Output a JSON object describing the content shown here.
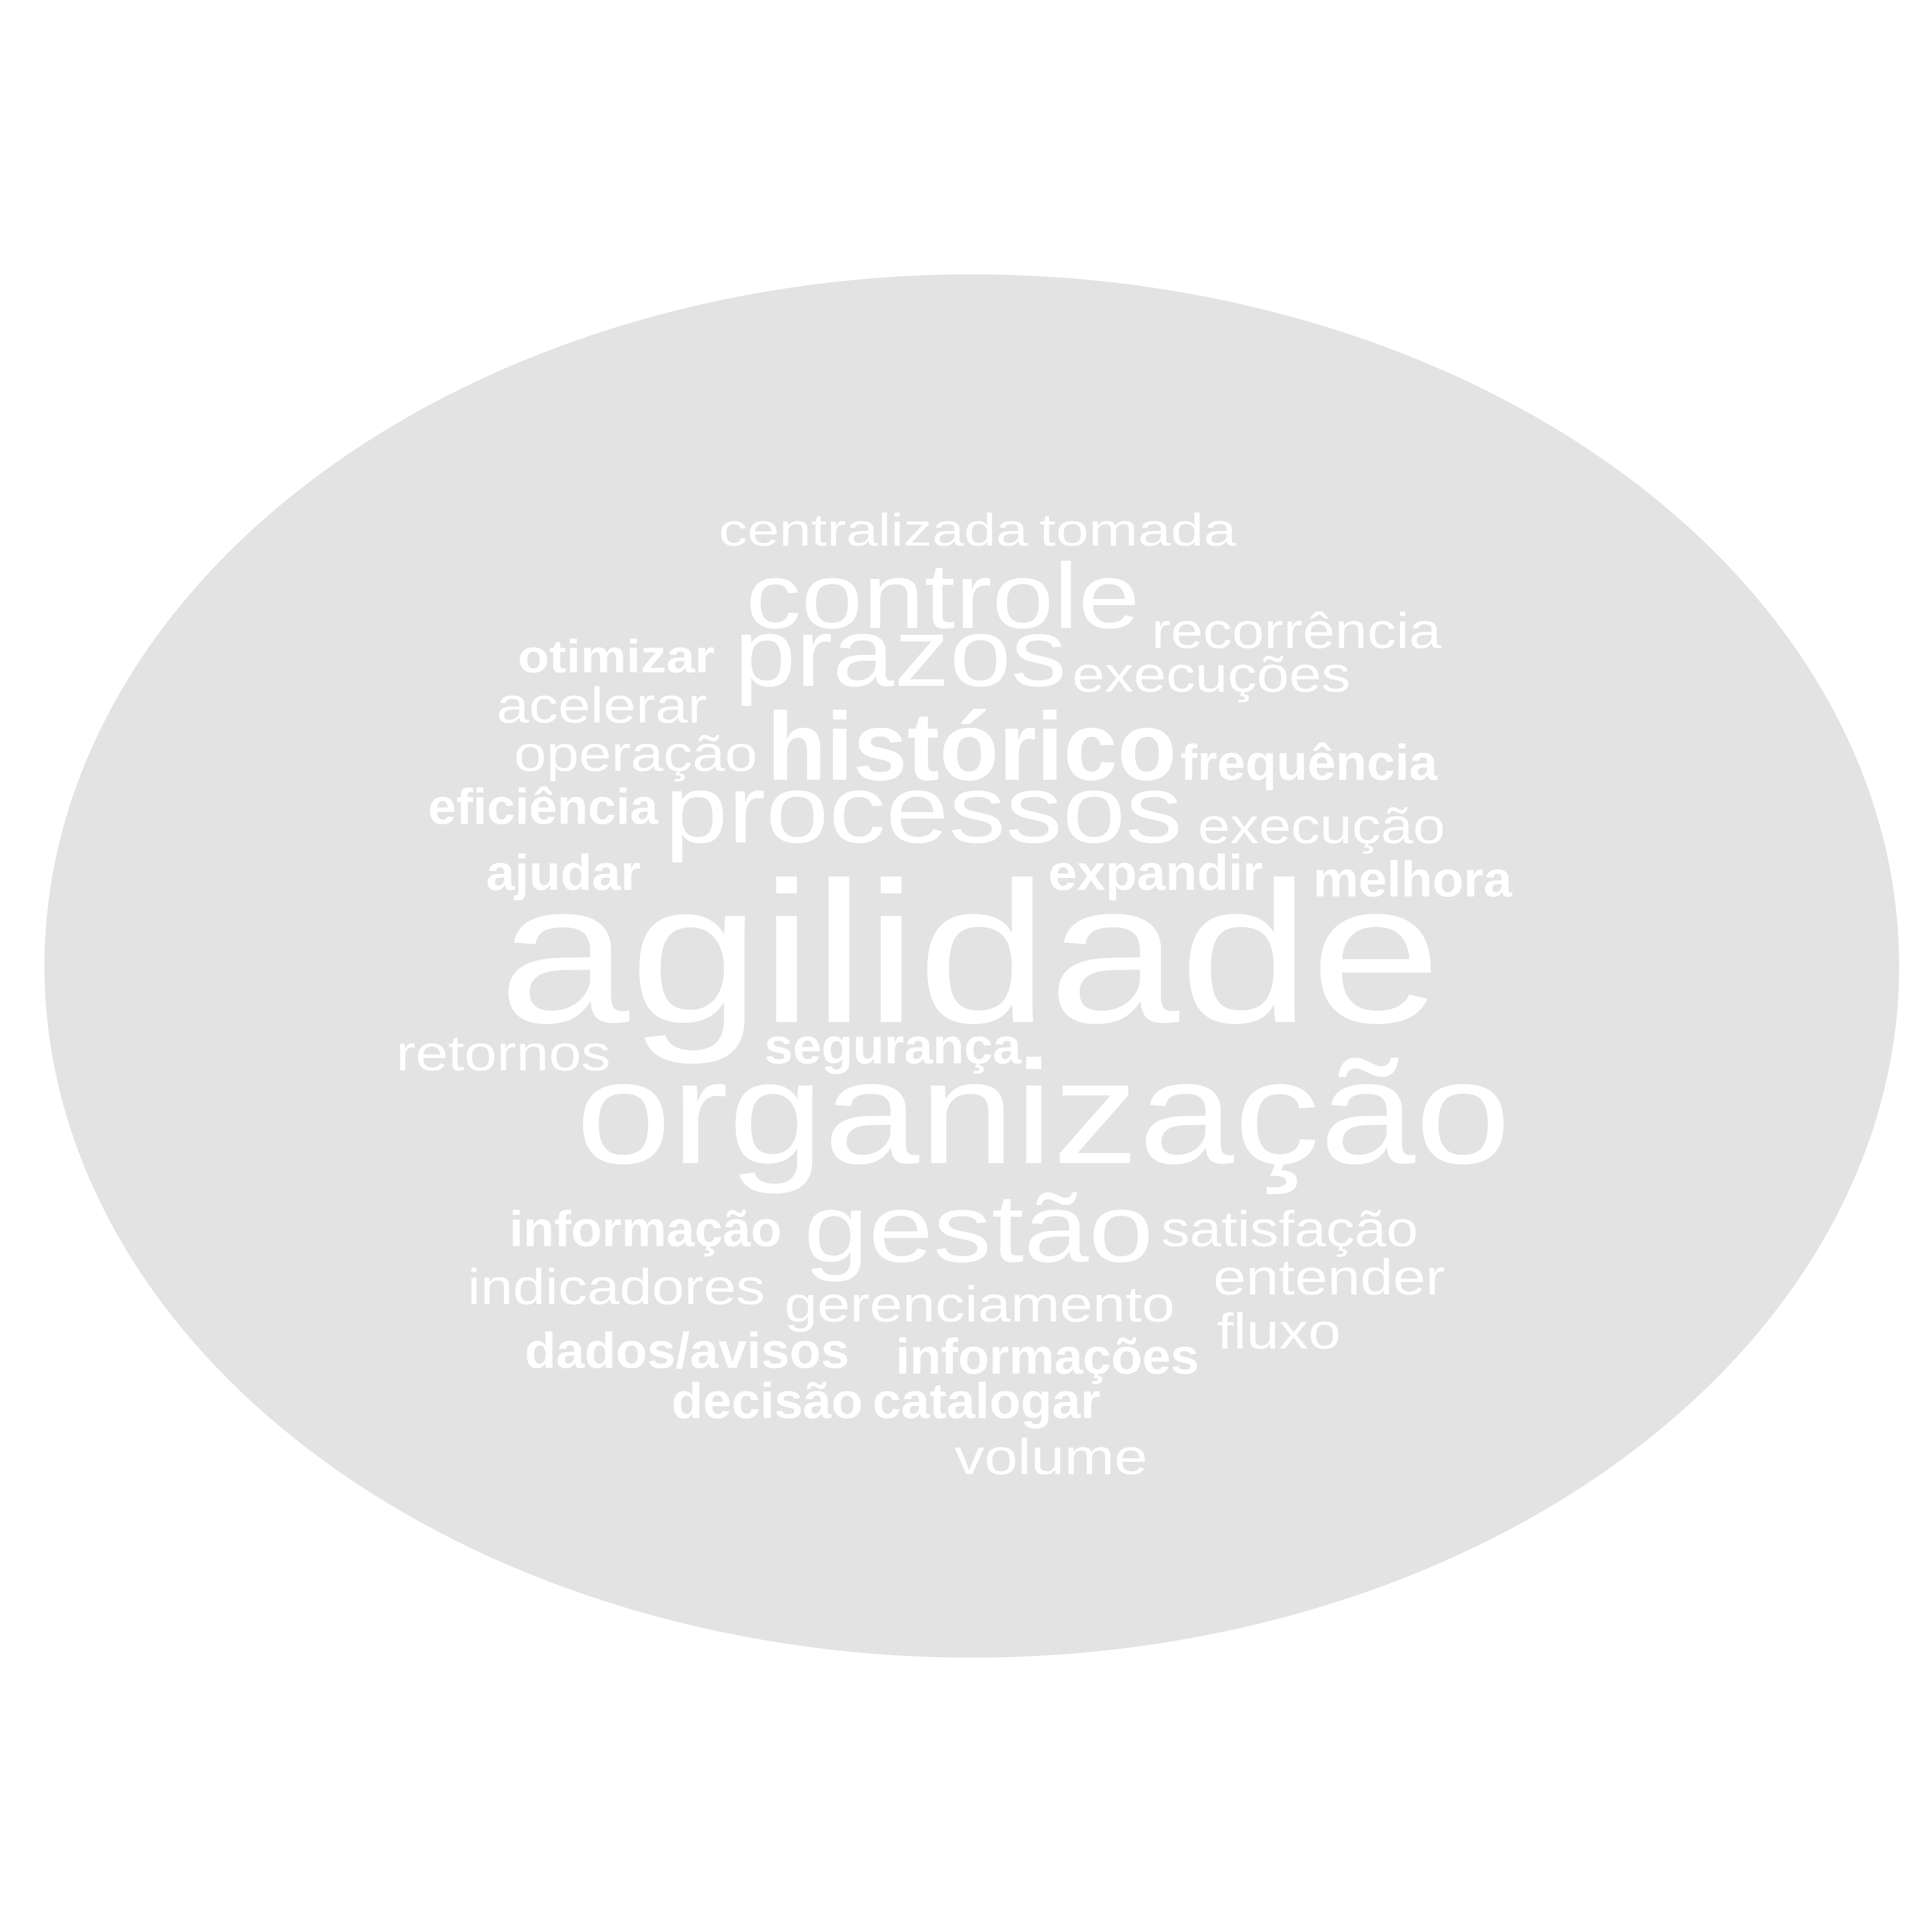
{
  "background_color": "#ffffff",
  "shape_color": "#e3e3e3",
  "word_color": "#ffffff",
  "words": [
    {
      "text": "centralizada"
    },
    {
      "text": "tomada"
    },
    {
      "text": "controle"
    },
    {
      "text": "recorrência"
    },
    {
      "text": "otimizar"
    },
    {
      "text": "prazos"
    },
    {
      "text": "execuções"
    },
    {
      "text": "acelerar"
    },
    {
      "text": "operação"
    },
    {
      "text": "histórico"
    },
    {
      "text": "frequência"
    },
    {
      "text": "eficiência"
    },
    {
      "text": "processos"
    },
    {
      "text": "execução"
    },
    {
      "text": "ajudar"
    },
    {
      "text": "expandir"
    },
    {
      "text": "melhora"
    },
    {
      "text": "agilidade"
    },
    {
      "text": "retornos"
    },
    {
      "text": "segurança"
    },
    {
      "text": "organização"
    },
    {
      "text": "informação"
    },
    {
      "text": "gestão"
    },
    {
      "text": "satisfação"
    },
    {
      "text": "indicadores"
    },
    {
      "text": "entender"
    },
    {
      "text": "gerenciamento"
    },
    {
      "text": "fluxo"
    },
    {
      "text": "dados/avisos"
    },
    {
      "text": "informações"
    },
    {
      "text": "decisão"
    },
    {
      "text": "catalogar"
    },
    {
      "text": "volume"
    }
  ]
}
